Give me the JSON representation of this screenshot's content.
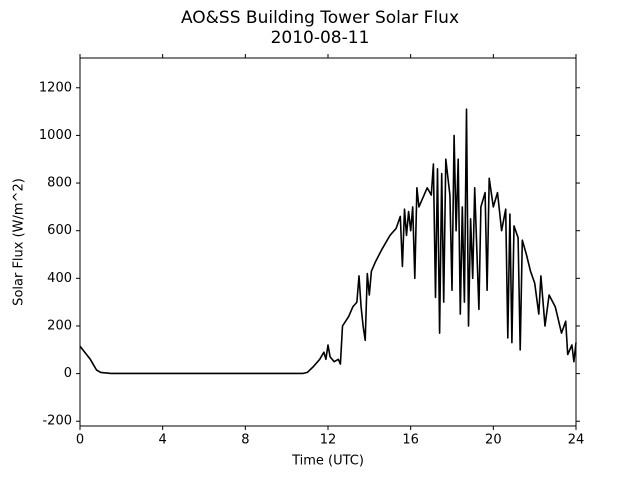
{
  "chart_data": {
    "type": "line",
    "title": "AO&SS Building Tower Solar Flux",
    "subtitle": "2010-08-11",
    "x_label": "Time (UTC)",
    "y_label": "Solar Flux (W/m^2)",
    "color": "#000000",
    "xlim": [
      0,
      24
    ],
    "xticks": [
      0,
      4,
      8,
      12,
      16,
      20,
      24
    ],
    "ylim": [
      -220,
      1325
    ],
    "yticks": [
      -200,
      0,
      200,
      400,
      600,
      800,
      1000,
      1200
    ],
    "x": [
      0,
      0.5,
      0.8,
      1.0,
      1.5,
      10.8,
      11.0,
      11.3,
      11.6,
      11.8,
      11.9,
      12.0,
      12.1,
      12.3,
      12.5,
      12.6,
      12.7,
      13.0,
      13.2,
      13.4,
      13.5,
      13.6,
      13.7,
      13.8,
      13.9,
      14.0,
      14.1,
      14.3,
      14.6,
      15.0,
      15.3,
      15.5,
      15.6,
      15.7,
      15.8,
      15.9,
      16.0,
      16.1,
      16.2,
      16.3,
      16.4,
      16.6,
      16.8,
      17.0,
      17.1,
      17.2,
      17.3,
      17.4,
      17.5,
      17.6,
      17.7,
      17.9,
      18.0,
      18.1,
      18.2,
      18.3,
      18.4,
      18.5,
      18.6,
      18.7,
      18.8,
      18.9,
      19.0,
      19.1,
      19.3,
      19.4,
      19.6,
      19.7,
      19.8,
      20.0,
      20.2,
      20.4,
      20.6,
      20.7,
      20.8,
      20.9,
      21.0,
      21.2,
      21.3,
      21.4,
      21.6,
      21.8,
      22.0,
      22.2,
      22.3,
      22.5,
      22.7,
      23.0,
      23.3,
      23.5,
      23.6,
      23.8,
      23.9,
      24.0
    ],
    "values": [
      115,
      60,
      15,
      5,
      1,
      1,
      5,
      30,
      60,
      90,
      60,
      120,
      70,
      50,
      60,
      40,
      200,
      240,
      280,
      300,
      410,
      280,
      200,
      140,
      420,
      330,
      430,
      470,
      520,
      580,
      610,
      660,
      450,
      690,
      580,
      680,
      600,
      700,
      400,
      780,
      700,
      740,
      780,
      750,
      880,
      320,
      860,
      170,
      840,
      300,
      900,
      750,
      350,
      1000,
      600,
      900,
      250,
      700,
      300,
      1110,
      200,
      650,
      400,
      780,
      270,
      700,
      760,
      350,
      820,
      700,
      760,
      600,
      690,
      150,
      670,
      130,
      620,
      570,
      100,
      560,
      500,
      430,
      380,
      250,
      410,
      200,
      330,
      280,
      170,
      220,
      80,
      120,
      50,
      130
    ]
  }
}
